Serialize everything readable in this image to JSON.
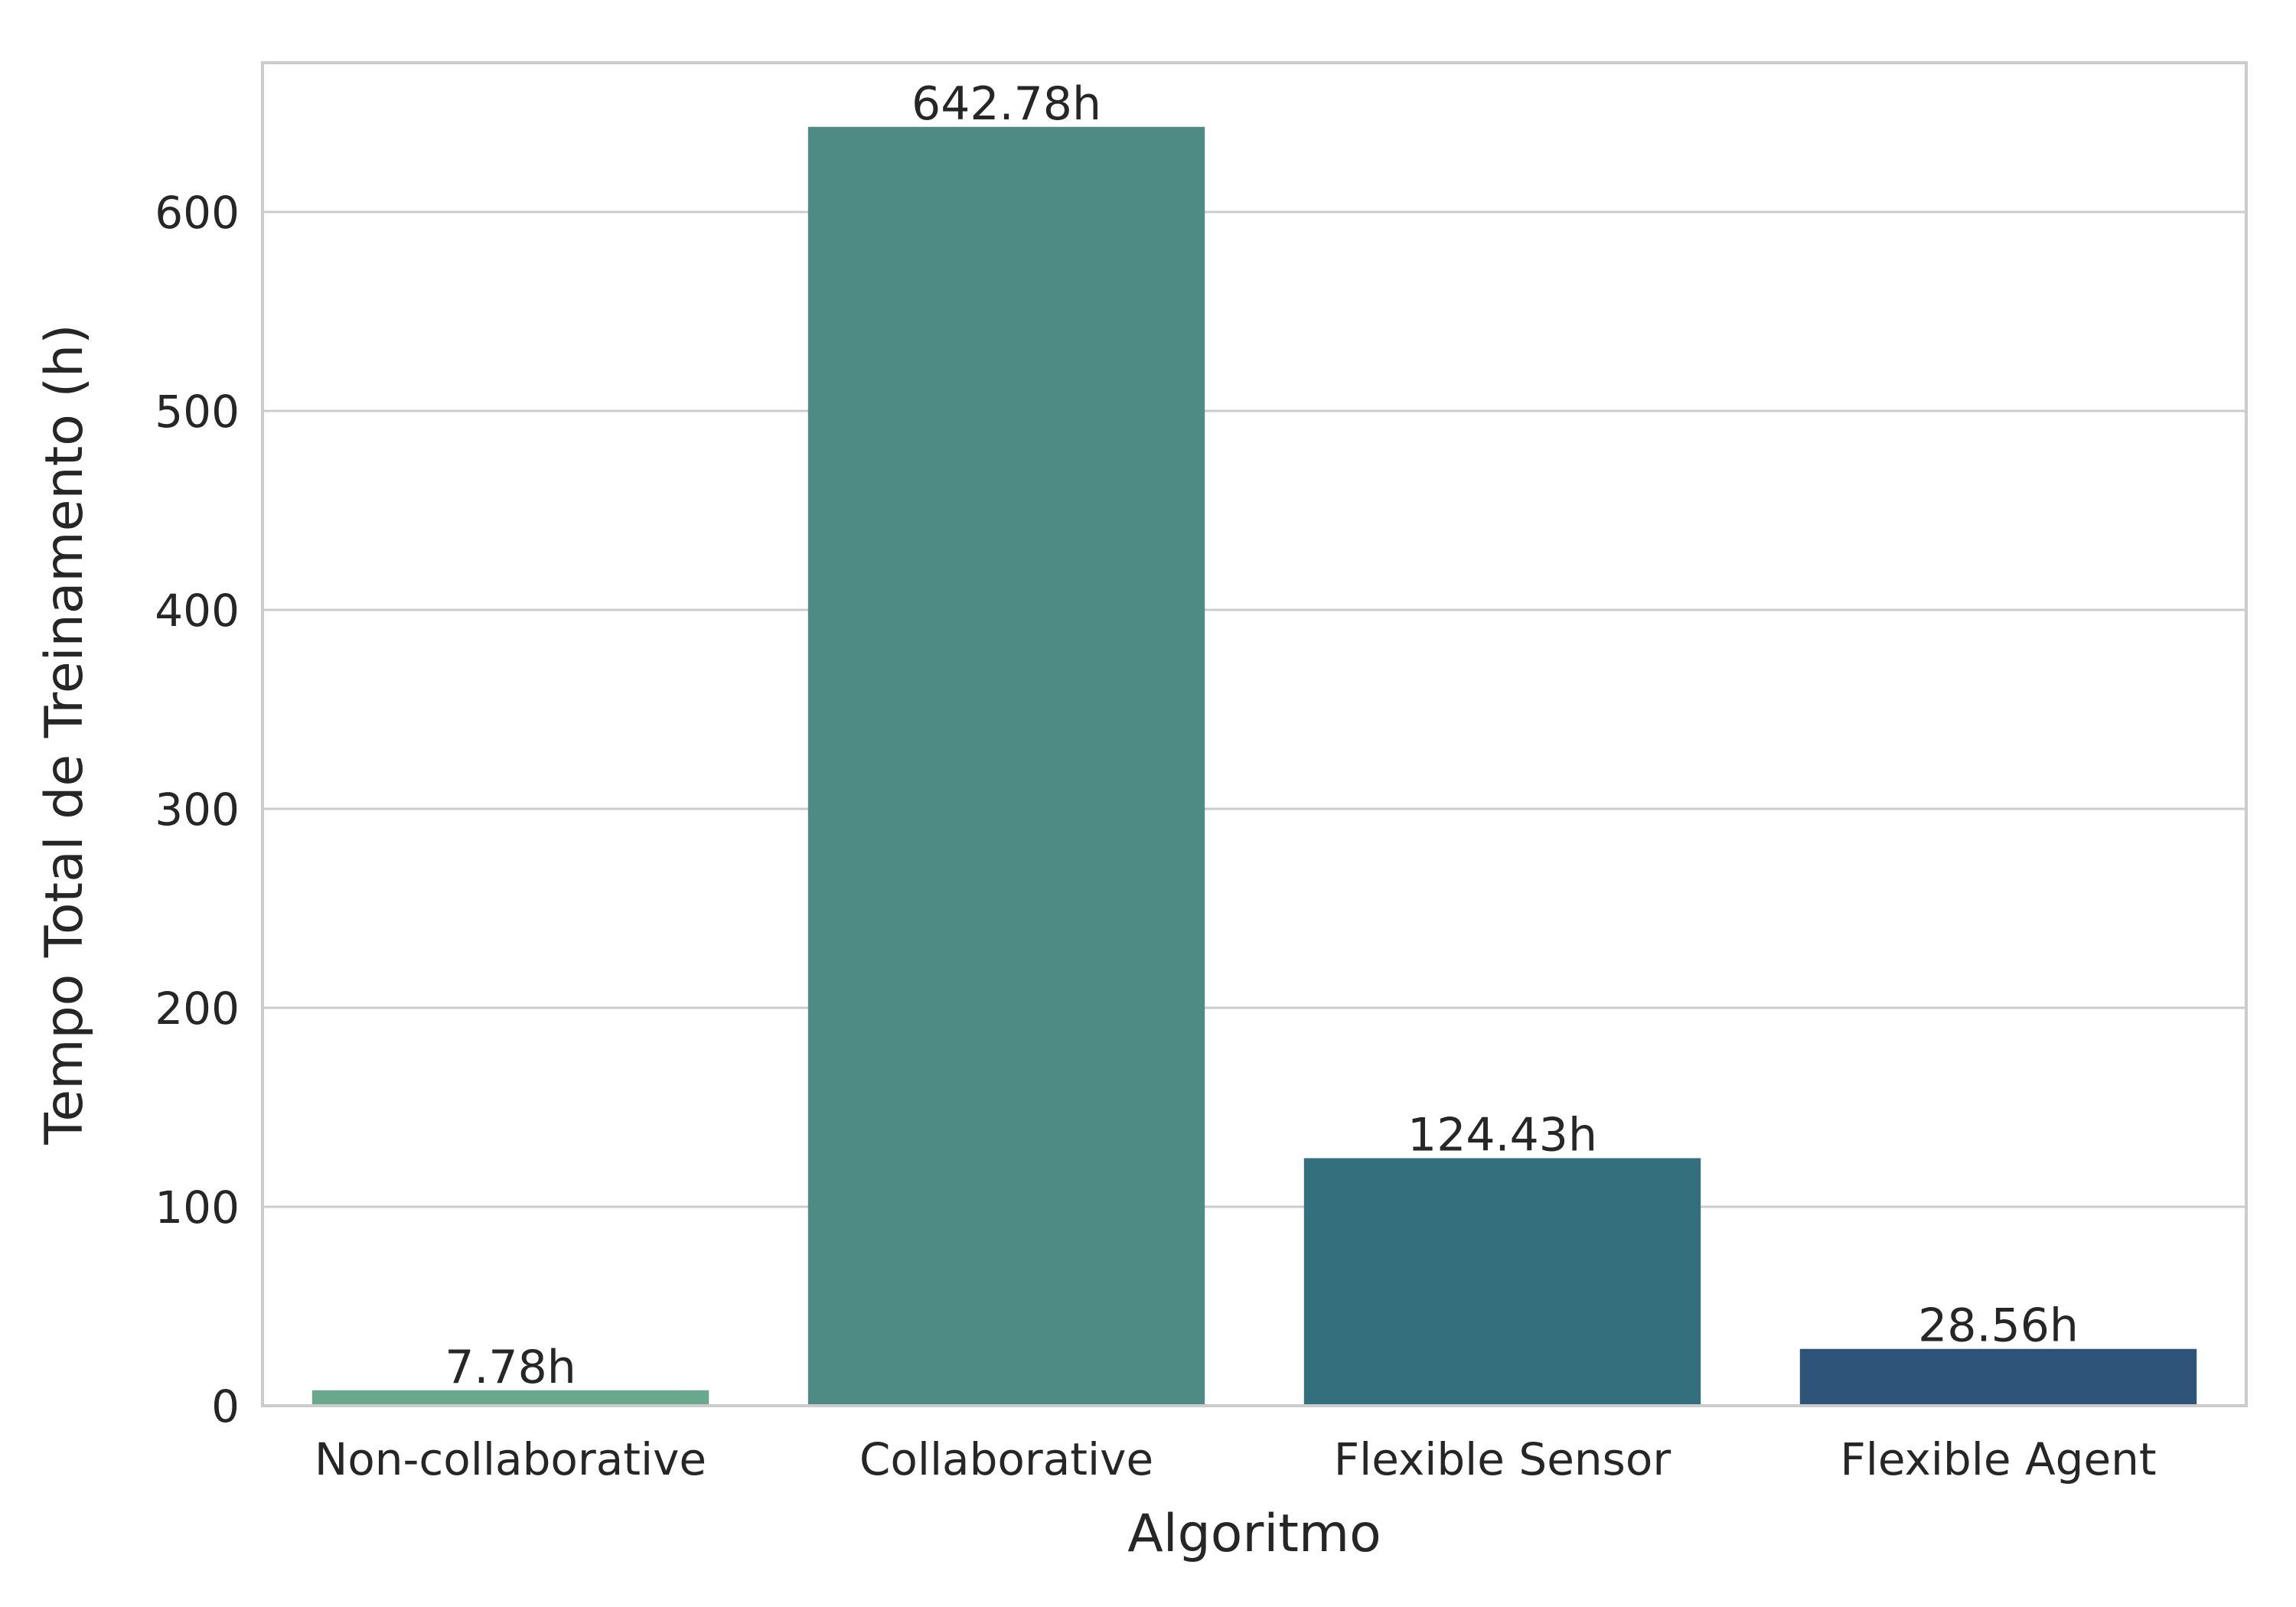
{
  "chart_data": {
    "type": "bar",
    "categories": [
      "Non-collaborative",
      "Collaborative",
      "Flexible Sensor",
      "Flexible Agent"
    ],
    "values": [
      7.78,
      642.78,
      124.43,
      28.56
    ],
    "value_labels": [
      "7.78h",
      "642.78h",
      "124.43h",
      "28.56h"
    ],
    "colors": [
      "#6aa88e",
      "#4e8b84",
      "#346f7d",
      "#2f5479"
    ],
    "xlabel": "Algoritmo",
    "ylabel": "Tempo Total de Treinamento (h)",
    "ylim": [
      0,
      675
    ],
    "yticks": [
      0,
      100,
      200,
      300,
      400,
      500,
      600
    ],
    "ytick_labels": [
      "0",
      "100",
      "200",
      "300",
      "400",
      "500",
      "600"
    ],
    "grid": true,
    "legend": "none"
  }
}
